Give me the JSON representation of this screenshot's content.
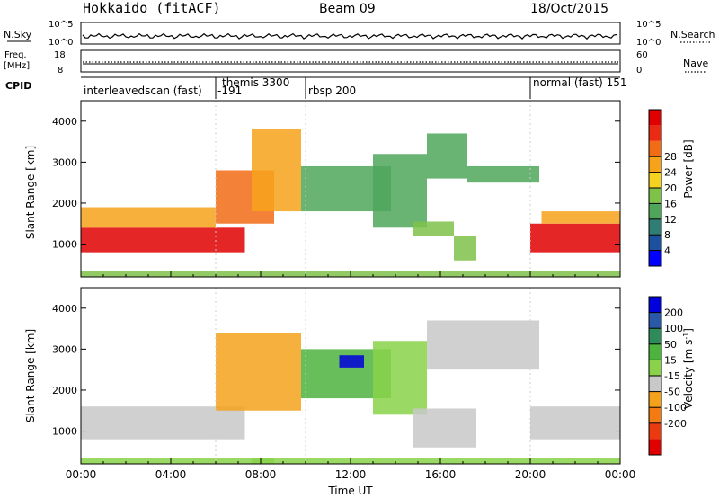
{
  "header": {
    "station": "Hokkaido (fitACF)",
    "beam": "Beam 09",
    "date": "18/Oct/2015"
  },
  "top_panels": {
    "nsky": {
      "label": "N.Sky",
      "tick_top": "10^5",
      "tick_bottom": "10^0",
      "right_label": "N.Search",
      "right_tick_top": "10^5",
      "right_tick_bottom": "10^0"
    },
    "freq": {
      "label_line1": "Freq.",
      "label_line2": "[MHz]",
      "tick_top": "18",
      "tick_bottom": "8",
      "right_label": "Nave",
      "right_tick_top": "60",
      "right_tick_bottom": "0"
    },
    "cpid": {
      "label": "CPID",
      "segments": [
        {
          "name": "interleavedscan (fast)",
          "start_hour": 0.0
        },
        {
          "name": "-191",
          "start_hour": 6.0
        },
        {
          "name": "themis 3300",
          "start_hour": 6.0
        },
        {
          "name": "rbsp 200",
          "start_hour": 10.0
        },
        {
          "name": "normal (fast) 151",
          "start_hour": 20.0
        }
      ]
    }
  },
  "chart_data": [
    {
      "type": "heatmap",
      "name": "Power",
      "ylabel": "Slant Range [km]",
      "ylim": [
        200,
        4500
      ],
      "xlim_hours": [
        0,
        24
      ],
      "yticks": [
        1000,
        2000,
        3000,
        4000
      ],
      "colorbar": {
        "label": "Power [dB]",
        "ticks": [
          "4",
          "8",
          "12",
          "16",
          "20",
          "24",
          "28"
        ],
        "colors": [
          "#0000ff",
          "#1e50a0",
          "#2f7d74",
          "#4fa65a",
          "#7fc24a",
          "#f4d21f",
          "#f7a21b",
          "#f26b15",
          "#ea2a12",
          "#e10000"
        ]
      },
      "regions": [
        {
          "t0": 0.0,
          "t1": 7.3,
          "r0": 800,
          "r1": 1400,
          "level": 9
        },
        {
          "t0": 0.0,
          "t1": 6.0,
          "r0": 1400,
          "r1": 1900,
          "level": 6
        },
        {
          "t0": 6.0,
          "t1": 8.6,
          "r0": 1500,
          "r1": 2800,
          "level": 7
        },
        {
          "t0": 7.6,
          "t1": 9.8,
          "r0": 1800,
          "r1": 3800,
          "level": 6
        },
        {
          "t0": 9.8,
          "t1": 13.8,
          "r0": 1800,
          "r1": 2900,
          "level": 3
        },
        {
          "t0": 13.0,
          "t1": 15.4,
          "r0": 1400,
          "r1": 3200,
          "level": 3
        },
        {
          "t0": 15.4,
          "t1": 17.2,
          "r0": 2600,
          "r1": 3700,
          "level": 3
        },
        {
          "t0": 17.2,
          "t1": 20.4,
          "r0": 2500,
          "r1": 2900,
          "level": 3
        },
        {
          "t0": 14.8,
          "t1": 16.6,
          "r0": 1200,
          "r1": 1550,
          "level": 4
        },
        {
          "t0": 16.6,
          "t1": 17.6,
          "r0": 600,
          "r1": 1200,
          "level": 4
        },
        {
          "t0": 20.0,
          "t1": 24.0,
          "r0": 800,
          "r1": 1500,
          "level": 9
        },
        {
          "t0": 20.5,
          "t1": 24.0,
          "r0": 1500,
          "r1": 1800,
          "level": 6
        },
        {
          "t0": 0.0,
          "t1": 24.0,
          "r0": 200,
          "r1": 350,
          "level": 4
        }
      ]
    },
    {
      "type": "heatmap",
      "name": "Velocity",
      "ylabel": "Slant Range [km]",
      "xlabel": "Time UT",
      "ylim": [
        200,
        4500
      ],
      "xlim_hours": [
        0,
        24
      ],
      "yticks": [
        1000,
        2000,
        3000,
        4000
      ],
      "xticks": [
        "00:00",
        "04:00",
        "08:00",
        "12:00",
        "16:00",
        "20:00",
        "00:00"
      ],
      "colorbar": {
        "label": "Velocity [m s^-1]",
        "ticks": [
          "200",
          "100",
          "50",
          "15",
          "-15",
          "-50",
          "-100",
          "-200"
        ],
        "colors": [
          "#0000dc",
          "#2a59a8",
          "#2f8c5a",
          "#4cb33d",
          "#8ad24a",
          "#c8c8c8",
          "#f4a21b",
          "#f47a12",
          "#ea3a10",
          "#e10000"
        ]
      },
      "regions": [
        {
          "t0": 0.0,
          "t1": 7.3,
          "r0": 800,
          "r1": 1600,
          "level": 5
        },
        {
          "t0": 0.0,
          "t1": 24.0,
          "r0": 200,
          "r1": 350,
          "level": 4
        },
        {
          "t0": 6.0,
          "t1": 9.8,
          "r0": 1500,
          "r1": 3400,
          "level": 6
        },
        {
          "t0": 9.8,
          "t1": 13.8,
          "r0": 1800,
          "r1": 3000,
          "level": 3
        },
        {
          "t0": 11.5,
          "t1": 12.6,
          "r0": 2550,
          "r1": 2850,
          "level": 0
        },
        {
          "t0": 13.0,
          "t1": 15.4,
          "r0": 1400,
          "r1": 3200,
          "level": 4
        },
        {
          "t0": 15.4,
          "t1": 20.4,
          "r0": 2500,
          "r1": 3700,
          "level": 5
        },
        {
          "t0": 14.8,
          "t1": 17.6,
          "r0": 600,
          "r1": 1550,
          "level": 5
        },
        {
          "t0": 20.0,
          "t1": 24.0,
          "r0": 800,
          "r1": 1600,
          "level": 5
        },
        {
          "t0": 7.6,
          "t1": 8.6,
          "r0": 200,
          "r1": 330,
          "level": 4
        }
      ]
    }
  ]
}
